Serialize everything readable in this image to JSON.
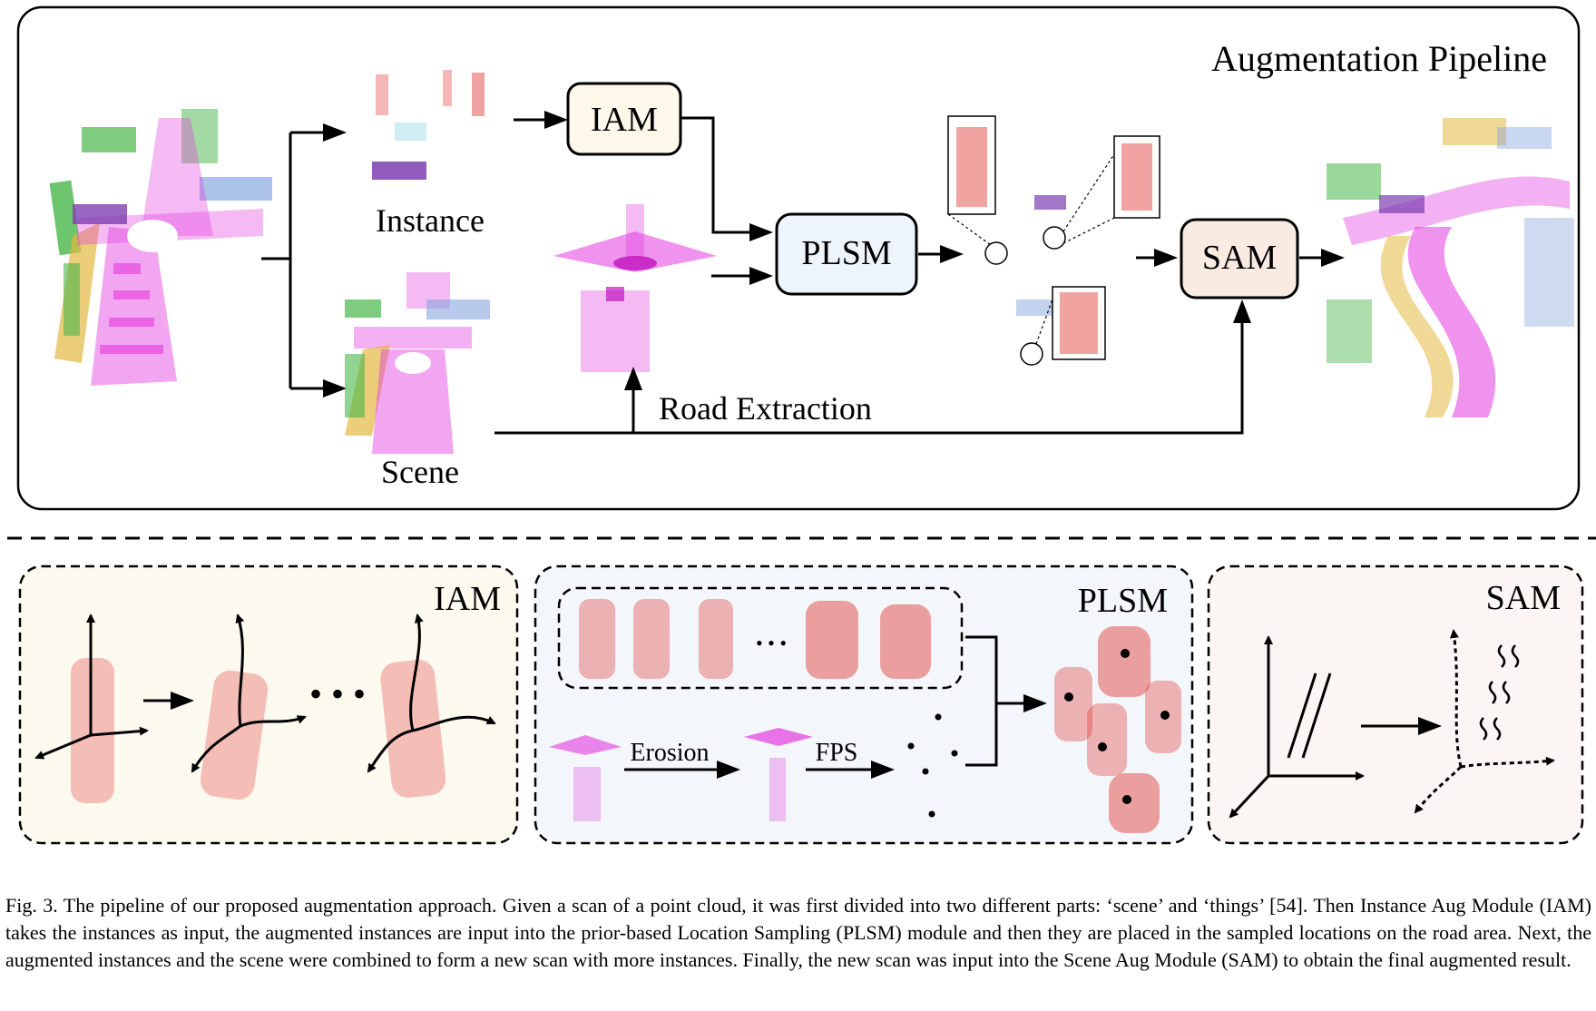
{
  "pipeline": {
    "title": "Augmentation Pipeline",
    "instance_label": "Instance",
    "scene_label": "Scene",
    "road_extraction_label": "Road Extraction",
    "iam_box": "IAM",
    "plsm_box": "PLSM",
    "sam_box": "SAM"
  },
  "panels": {
    "iam": {
      "title": "IAM",
      "dots": "• • •"
    },
    "plsm": {
      "title": "PLSM",
      "ellipsis": "• • •",
      "erosion_label": "Erosion",
      "fps_label": "FPS"
    },
    "sam": {
      "title": "SAM"
    }
  },
  "colors": {
    "iam_box_fill": "#fdf8ea",
    "plsm_box_fill": "#eef4fb",
    "sam_box_fill": "#f9ebe2",
    "iam_panel_fill": "#fcf9ef",
    "plsm_panel_fill": "#f3f6fa",
    "sam_panel_fill": "#fbf6f4",
    "instance_points": "#e0322f",
    "road_points": "#e23ae0"
  },
  "caption": {
    "text": "Fig. 3.  The pipeline of our proposed augmentation approach. Given a scan of a point cloud, it was first divided into two different parts: ‘scene’ and ‘things’ [54]. Then Instance Aug Module (IAM) takes the instances as input, the augmented instances are input into the prior-based Location Sampling (PLSM) module and then they are placed in the sampled locations on the road area. Next, the augmented instances and the scene were combined to form a new scan with more instances. Finally, the new scan was input into the Scene Aug Module (SAM) to obtain the final augmented result."
  }
}
